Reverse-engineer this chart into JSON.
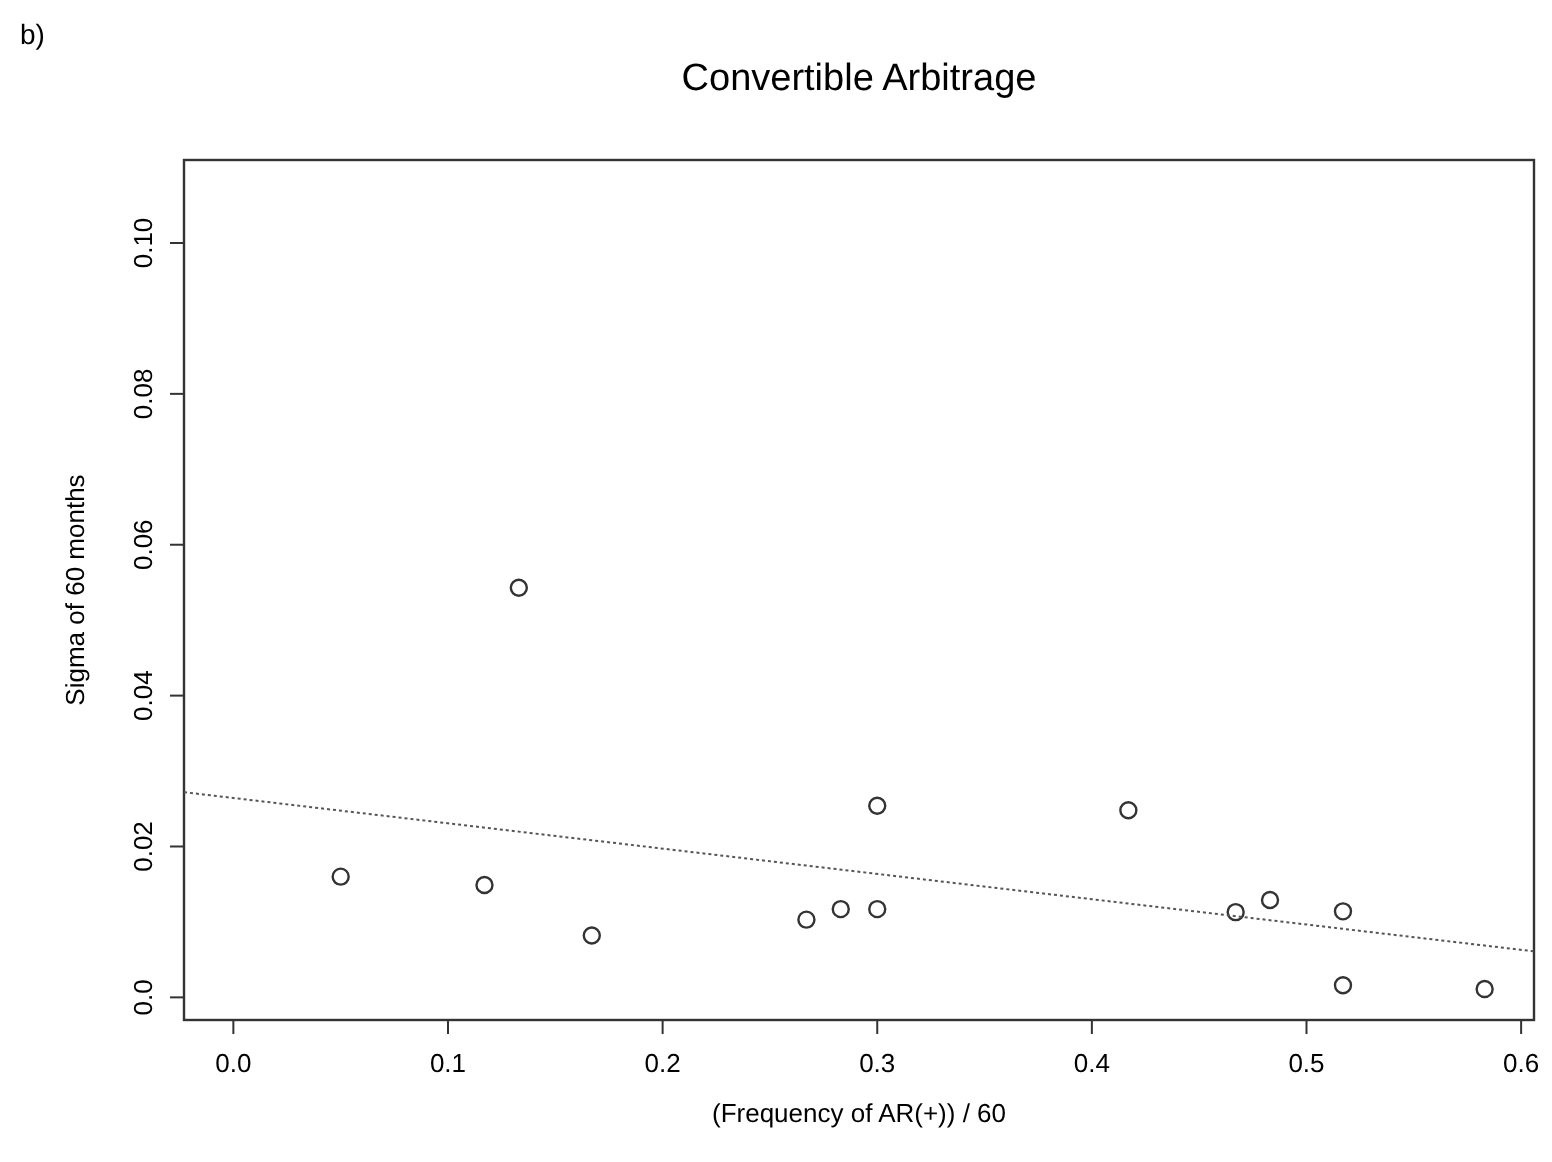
{
  "chart_data": {
    "type": "scatter",
    "title": "Convertible Arbitrage",
    "xlabel": "(Frequency of AR(+))  / 60",
    "ylabel": "Sigma of 60 months",
    "annotations": [
      "b)"
    ],
    "xlim": [
      -0.023,
      0.606
    ],
    "ylim": [
      -0.003,
      0.111
    ],
    "xticks": [
      {
        "value": 0,
        "label": "0.0"
      },
      0.1,
      0.2,
      0.3,
      0.4,
      0.5,
      0.6
    ],
    "yticks": [
      {
        "value": 0,
        "label": "0.0"
      },
      0.02,
      0.04,
      0.06,
      0.08,
      {
        "value": 0.1,
        "label": "0.10"
      }
    ],
    "grid": false,
    "marker": "circle",
    "series": [
      {
        "color": "#333333",
        "x": [
          0.05,
          0.117,
          0.133,
          0.167,
          0.267,
          0.283,
          0.3,
          0.3,
          0.417,
          0.467,
          0.483,
          0.517,
          0.517,
          0.583
        ],
        "values": [
          0.016,
          0.0149,
          0.0543,
          0.0082,
          0.0103,
          0.0117,
          0.0117,
          0.0254,
          0.0248,
          0.0113,
          0.0129,
          0.0114,
          0.0016,
          0.0011
        ]
      },
      {
        "type": "line",
        "color": "#555555",
        "line_style": "dotted",
        "marker": "none",
        "x": [
          -0.023,
          0.606
        ],
        "values": [
          0.0272,
          0.0061
        ]
      }
    ]
  }
}
